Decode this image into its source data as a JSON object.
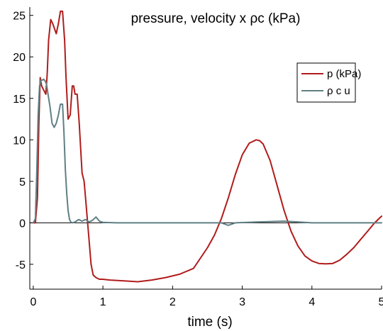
{
  "chart_data": {
    "type": "line",
    "title": "pressure, velocity x ρc  (kPa)",
    "xlabel": "time (s)",
    "ylabel": "",
    "xlim": [
      -0.05,
      5.0
    ],
    "ylim": [
      -8,
      26
    ],
    "x_ticks": [
      0,
      1,
      2,
      3,
      4,
      5
    ],
    "y_ticks": [
      -5,
      0,
      5,
      10,
      15,
      20,
      25
    ],
    "x_tick_labels": [
      "0",
      "1",
      "2",
      "3",
      "4",
      "5"
    ],
    "y_tick_labels": [
      "-5",
      "0",
      "5",
      "10",
      "15",
      "20",
      "25"
    ],
    "grid": false,
    "zero_line": true,
    "legend_position": "upper-right",
    "series": [
      {
        "name": "p (kPa)",
        "color": "#b01c1c",
        "x": [
          0,
          0.03,
          0.06,
          0.08,
          0.1,
          0.12,
          0.15,
          0.18,
          0.2,
          0.22,
          0.25,
          0.28,
          0.3,
          0.33,
          0.36,
          0.39,
          0.42,
          0.45,
          0.47,
          0.5,
          0.53,
          0.56,
          0.58,
          0.6,
          0.63,
          0.66,
          0.7,
          0.73,
          0.76,
          0.8,
          0.83,
          0.86,
          0.9,
          0.95,
          1.0,
          1.1,
          1.3,
          1.5,
          1.7,
          1.9,
          2.1,
          2.3,
          2.5,
          2.6,
          2.7,
          2.8,
          2.9,
          3.0,
          3.1,
          3.2,
          3.25,
          3.3,
          3.4,
          3.5,
          3.6,
          3.7,
          3.8,
          3.9,
          4.0,
          4.1,
          4.2,
          4.3,
          4.4,
          4.5,
          4.6,
          4.7,
          4.8,
          4.9,
          5.0
        ],
        "y": [
          0,
          0,
          3,
          12,
          17.5,
          16.5,
          16,
          15.5,
          18,
          22,
          24.5,
          24,
          23.5,
          22.8,
          24,
          25.5,
          25.5,
          22,
          17.5,
          12.5,
          13,
          16.5,
          16.5,
          15.5,
          15.5,
          12,
          6,
          5,
          2,
          -2,
          -5,
          -6.3,
          -6.6,
          -6.8,
          -6.8,
          -6.9,
          -7,
          -7.1,
          -6.9,
          -6.6,
          -6.2,
          -5.5,
          -3,
          -1.5,
          0.5,
          3,
          5.8,
          8.2,
          9.6,
          10,
          9.9,
          9.5,
          7.5,
          4.5,
          1.5,
          -1,
          -2.8,
          -4,
          -4.6,
          -4.9,
          -4.95,
          -4.9,
          -4.5,
          -3.8,
          -3,
          -2,
          -1,
          0,
          0.8
        ]
      },
      {
        "name": "ρ c u",
        "color": "#5f7f84",
        "x": [
          0,
          0.03,
          0.05,
          0.07,
          0.09,
          0.11,
          0.13,
          0.15,
          0.17,
          0.19,
          0.21,
          0.24,
          0.27,
          0.3,
          0.33,
          0.36,
          0.39,
          0.42,
          0.44,
          0.46,
          0.48,
          0.5,
          0.52,
          0.54,
          0.56,
          0.6,
          0.65,
          0.7,
          0.75,
          0.8,
          0.85,
          0.9,
          0.95,
          1.0,
          1.2,
          1.5,
          2.0,
          2.5,
          2.7,
          2.8,
          2.9,
          3.2,
          3.6,
          4.0,
          4.5,
          5.0
        ],
        "y": [
          0,
          0.5,
          6,
          13,
          16.5,
          17.2,
          17.2,
          17.3,
          17.1,
          16.7,
          15.6,
          14,
          12,
          11.5,
          12,
          13,
          14.3,
          14.3,
          11,
          6.5,
          3.5,
          1.5,
          0.4,
          0.1,
          0,
          0.1,
          0.4,
          0.2,
          0.4,
          0.1,
          0.3,
          0.7,
          0.2,
          0.05,
          0,
          0,
          0,
          0,
          0,
          -0.3,
          0,
          0.1,
          0.2,
          0,
          0,
          0
        ]
      }
    ]
  }
}
